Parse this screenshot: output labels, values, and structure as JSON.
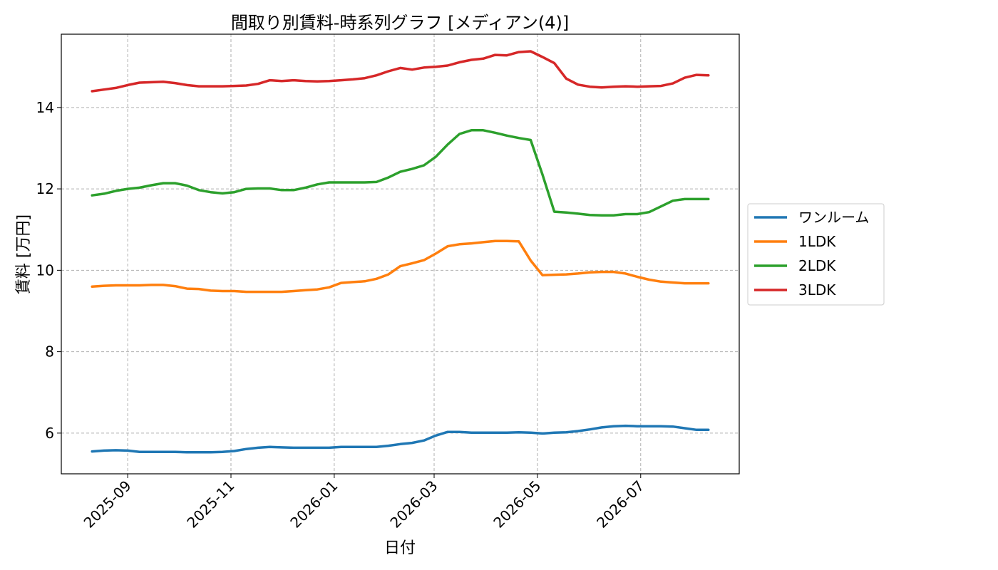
{
  "chart_data": {
    "type": "line",
    "title": "間取り別賃料-時系列グラフ [メディアン(4)]",
    "xlabel": "日付",
    "ylabel": "賃料 [万円]",
    "x_ticks": [
      "2025-09",
      "2025-11",
      "2026-01",
      "2026-03",
      "2026-05",
      "2026-07"
    ],
    "y_ticks": [
      "6",
      "8",
      "10",
      "12",
      "14"
    ],
    "ylim": [
      5.0,
      15.8
    ],
    "grid": true,
    "legend_position": "right",
    "x": [
      "2025-08-11",
      "2025-08-18",
      "2025-08-25",
      "2025-09-01",
      "2025-09-08",
      "2025-09-15",
      "2025-09-22",
      "2025-09-29",
      "2025-10-06",
      "2025-10-13",
      "2025-10-20",
      "2025-10-27",
      "2025-11-03",
      "2025-11-10",
      "2025-11-17",
      "2025-11-24",
      "2025-12-01",
      "2025-12-08",
      "2025-12-15",
      "2025-12-22",
      "2025-12-29",
      "2026-01-05",
      "2026-01-12",
      "2026-01-19",
      "2026-01-26",
      "2026-02-02",
      "2026-02-09",
      "2026-02-16",
      "2026-02-23",
      "2026-03-02",
      "2026-03-09",
      "2026-03-16",
      "2026-03-23",
      "2026-03-30",
      "2026-04-06",
      "2026-04-13",
      "2026-04-20",
      "2026-04-27",
      "2026-05-04",
      "2026-05-11",
      "2026-05-18",
      "2026-05-25",
      "2026-06-01",
      "2026-06-08",
      "2026-06-15",
      "2026-06-22",
      "2026-06-29",
      "2026-07-06",
      "2026-07-13",
      "2026-07-20",
      "2026-07-27",
      "2026-08-03",
      "2026-08-10"
    ],
    "series": [
      {
        "name": "ワンルーム",
        "color": "#1f77b4",
        "values": [
          5.55,
          5.57,
          5.58,
          5.57,
          5.54,
          5.54,
          5.54,
          5.54,
          5.53,
          5.53,
          5.53,
          5.54,
          5.56,
          5.61,
          5.64,
          5.66,
          5.65,
          5.64,
          5.64,
          5.64,
          5.64,
          5.66,
          5.66,
          5.66,
          5.66,
          5.69,
          5.73,
          5.76,
          5.82,
          5.94,
          6.03,
          6.03,
          6.01,
          6.01,
          6.01,
          6.01,
          6.02,
          6.01,
          5.99,
          6.01,
          6.02,
          6.05,
          6.09,
          6.14,
          6.17,
          6.18,
          6.17,
          6.17,
          6.17,
          6.16,
          6.12,
          6.08,
          6.08
        ]
      },
      {
        "name": "1LDK",
        "color": "#ff7f0e",
        "values": [
          9.6,
          9.62,
          9.63,
          9.63,
          9.63,
          9.64,
          9.64,
          9.61,
          9.55,
          9.54,
          9.5,
          9.49,
          9.49,
          9.47,
          9.47,
          9.47,
          9.47,
          9.49,
          9.51,
          9.53,
          9.58,
          9.69,
          9.71,
          9.73,
          9.79,
          9.9,
          10.1,
          10.17,
          10.25,
          10.41,
          10.59,
          10.64,
          10.66,
          10.69,
          10.72,
          10.72,
          10.71,
          10.24,
          9.88,
          9.89,
          9.9,
          9.92,
          9.95,
          9.96,
          9.96,
          9.92,
          9.84,
          9.77,
          9.72,
          9.7,
          9.68,
          9.68,
          9.68
        ]
      },
      {
        "name": "2LDK",
        "color": "#2ca02c",
        "values": [
          11.84,
          11.88,
          11.95,
          12.0,
          12.03,
          12.09,
          12.14,
          12.14,
          12.08,
          11.97,
          11.92,
          11.89,
          11.92,
          12.0,
          12.01,
          12.01,
          11.97,
          11.97,
          12.03,
          12.11,
          12.16,
          12.16,
          12.16,
          12.16,
          12.17,
          12.28,
          12.42,
          12.49,
          12.58,
          12.79,
          13.09,
          13.35,
          13.44,
          13.44,
          13.38,
          13.31,
          13.25,
          13.2,
          12.35,
          11.44,
          11.42,
          11.39,
          11.36,
          11.35,
          11.35,
          11.38,
          11.38,
          11.43,
          11.57,
          11.71,
          11.75,
          11.75,
          11.75
        ]
      },
      {
        "name": "3LDK",
        "color": "#d62728",
        "values": [
          14.4,
          14.44,
          14.48,
          14.55,
          14.61,
          14.62,
          14.63,
          14.6,
          14.55,
          14.52,
          14.52,
          14.52,
          14.53,
          14.54,
          14.58,
          14.67,
          14.65,
          14.67,
          14.65,
          14.64,
          14.65,
          14.67,
          14.69,
          14.72,
          14.79,
          14.89,
          14.97,
          14.93,
          14.98,
          15.0,
          15.03,
          15.11,
          15.17,
          15.2,
          15.29,
          15.28,
          15.36,
          15.38,
          15.24,
          15.09,
          14.71,
          14.56,
          14.51,
          14.49,
          14.51,
          14.52,
          14.51,
          14.52,
          14.53,
          14.59,
          14.73,
          14.8,
          14.79
        ]
      }
    ]
  }
}
